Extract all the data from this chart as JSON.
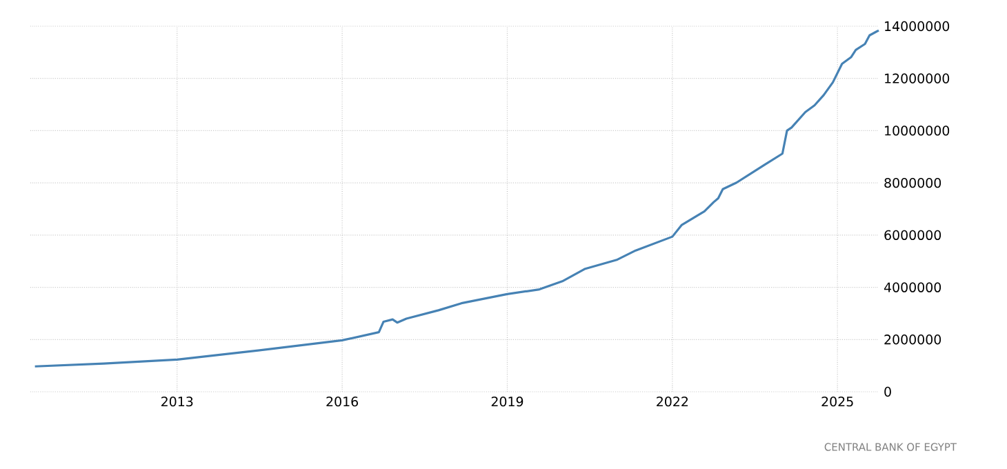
{
  "chart_data": {
    "type": "line",
    "color": "#4682b4",
    "grid": true,
    "xlim": [
      "2010-05",
      "2025-10"
    ],
    "xticks": [
      "2013",
      "2016",
      "2019",
      "2022",
      "2025"
    ],
    "ylim": [
      0,
      14000000
    ],
    "yticks": [
      0,
      2000000,
      4000000,
      6000000,
      8000000,
      10000000,
      12000000,
      14000000
    ],
    "annotations": [
      "CENTRAL BANK OF EGYPT"
    ],
    "x": [
      "2010-06",
      "2011-09",
      "2013-01",
      "2014-07",
      "2016-01",
      "2016-09",
      "2016-10",
      "2016-12",
      "2017-01",
      "2017-03",
      "2017-10",
      "2018-03",
      "2019-01",
      "2019-08",
      "2020-01",
      "2020-06",
      "2021-01",
      "2021-05",
      "2022-01",
      "2022-03",
      "2022-08",
      "2022-10",
      "2022-11",
      "2022-12",
      "2023-03",
      "2023-09",
      "2024-01",
      "2024-02",
      "2024-03",
      "2024-06",
      "2024-08",
      "2024-10",
      "2024-12",
      "2025-02",
      "2025-04",
      "2025-05",
      "2025-07",
      "2025-08",
      "2025-10"
    ],
    "values": [
      970000,
      1080000,
      1230000,
      1590000,
      1970000,
      2280000,
      2680000,
      2770000,
      2650000,
      2800000,
      3120000,
      3390000,
      3740000,
      3920000,
      4230000,
      4710000,
      5060000,
      5410000,
      5940000,
      6380000,
      6910000,
      7260000,
      7410000,
      7760000,
      8010000,
      8680000,
      9120000,
      10000000,
      10120000,
      10710000,
      10970000,
      11360000,
      11850000,
      12560000,
      12820000,
      13090000,
      13320000,
      13650000,
      13840000
    ]
  }
}
